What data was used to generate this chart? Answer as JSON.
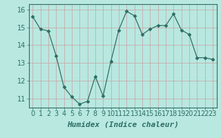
{
  "x": [
    0,
    1,
    2,
    3,
    4,
    5,
    6,
    7,
    8,
    9,
    10,
    11,
    12,
    13,
    14,
    15,
    16,
    17,
    18,
    19,
    20,
    21,
    22,
    23
  ],
  "y": [
    15.6,
    14.9,
    14.8,
    13.4,
    11.65,
    11.1,
    10.7,
    10.85,
    12.25,
    11.15,
    13.1,
    14.85,
    15.9,
    15.65,
    14.6,
    14.9,
    15.1,
    15.1,
    15.75,
    14.85,
    14.6,
    13.3,
    13.3,
    13.2
  ],
  "line_color": "#2d6e63",
  "marker": "D",
  "marker_size": 2.5,
  "bg_color": "#b8e8e0",
  "plot_bg_color": "#b8e8e0",
  "grid_color": "#c8a0a0",
  "xlabel": "Humidex (Indice chaleur)",
  "xlabel_fontsize": 8,
  "tick_fontsize": 7,
  "ylim": [
    10.5,
    16.3
  ],
  "yticks": [
    11,
    12,
    13,
    14,
    15,
    16
  ],
  "xticks": [
    0,
    1,
    2,
    3,
    4,
    5,
    6,
    7,
    8,
    9,
    10,
    11,
    12,
    13,
    14,
    15,
    16,
    17,
    18,
    19,
    20,
    21,
    22,
    23
  ],
  "text_color": "#2d6e63"
}
